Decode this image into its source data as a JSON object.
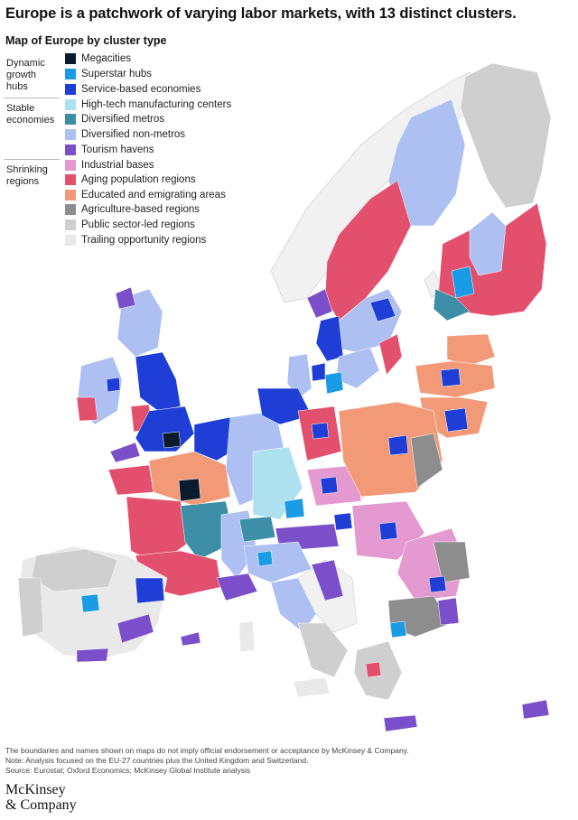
{
  "headline": "Europe is a patchwork of varying labor markets, with 13 distinct clusters.",
  "subtitle": "Map of Europe by cluster type",
  "legend": {
    "groups": [
      {
        "label": "Dynamic growth hubs",
        "lines": [
          "Dynamic",
          "growth",
          "hubs"
        ]
      },
      {
        "label": "Stable economies",
        "lines": [
          "Stable",
          "economies"
        ]
      },
      {
        "label": "Shrinking regions",
        "lines": [
          "Shrinking",
          "regions"
        ]
      }
    ],
    "items": [
      {
        "label": "Megacities",
        "color": "#0b1b2e"
      },
      {
        "label": "Superstar hubs",
        "color": "#1a9be6"
      },
      {
        "label": "Service-based economies",
        "color": "#1f3ed6"
      },
      {
        "label": "High-tech manufacturing centers",
        "color": "#aee1ef"
      },
      {
        "label": "Diversified metros",
        "color": "#3c8fa7"
      },
      {
        "label": "Diversified non-metros",
        "color": "#aebff2"
      },
      {
        "label": "Tourism havens",
        "color": "#7b4fc9"
      },
      {
        "label": "Industrial bases",
        "color": "#e49ad0"
      },
      {
        "label": "Aging population regions",
        "color": "#e3506d"
      },
      {
        "label": "Educated and emigrating areas",
        "color": "#f29a78"
      },
      {
        "label": "Agriculture-based regions",
        "color": "#8d8d8d"
      },
      {
        "label": "Public sector-led regions",
        "color": "#cfcfcf"
      },
      {
        "label": "Trailing opportunity regions",
        "color": "#e9e9e9"
      }
    ]
  },
  "footnotes": {
    "disclaimer": "The boundaries and names shown on maps do not imply official endorsement or acceptance by McKinsey & Company.",
    "note": "Note: Analysis focused on the EU-27 countries plus the United Kingdom and Switzerland.",
    "source": "Source: Eurostat; Oxford Economics; McKinsey Global Institute analysis"
  },
  "logo": {
    "line1": "McKinsey",
    "line2": "& Company"
  }
}
